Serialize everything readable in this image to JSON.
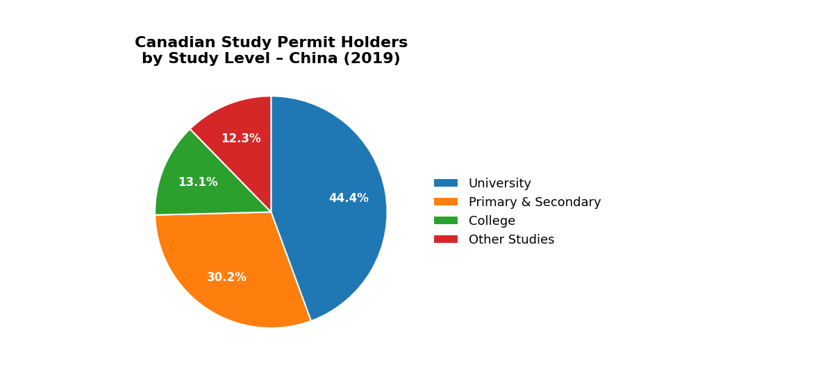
{
  "chart_data": {
    "type": "pie",
    "title": "Canadian Study Permit Holders\nby Study Level – China (2019)",
    "categories": [
      "University",
      "Primary & Secondary",
      "College",
      "Other Studies"
    ],
    "values": [
      44.4,
      30.2,
      13.1,
      12.3
    ],
    "value_labels": [
      "44.4%",
      "30.2%",
      "13.1%",
      "12.3%"
    ],
    "data_labels": true,
    "legend": "center left"
  }
}
